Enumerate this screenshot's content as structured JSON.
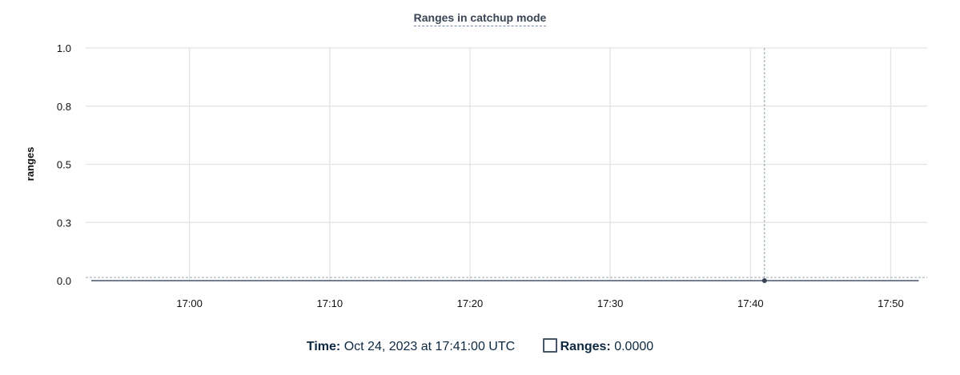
{
  "chart_data": {
    "type": "line",
    "title": "Ranges in catchup mode",
    "ylabel": "ranges",
    "xlabel": "",
    "x_ticks": [
      "17:00",
      "17:10",
      "17:20",
      "17:30",
      "17:40",
      "17:50"
    ],
    "y_ticks": [
      {
        "value": 0,
        "label": "0.0"
      },
      {
        "value": 0.25,
        "label": "0.3"
      },
      {
        "value": 0.5,
        "label": "0.5"
      },
      {
        "value": 0.75,
        "label": "0.8"
      },
      {
        "value": 1,
        "label": "1.0"
      }
    ],
    "xlim": [
      "16:52.6",
      "17:52.6"
    ],
    "ylim": [
      0,
      1
    ],
    "grid": true,
    "series": [
      {
        "name": "Ranges",
        "color": "#475569",
        "x": [
          "16:53",
          "17:52"
        ],
        "values": [
          0,
          0
        ]
      }
    ],
    "hover": {
      "x": "17:41",
      "value": 0
    }
  },
  "legend": {
    "time_label": "Time:",
    "time_value": "Oct 24, 2023 at 17:41:00 UTC",
    "series_label": "Ranges:",
    "series_value": "0.0000"
  }
}
